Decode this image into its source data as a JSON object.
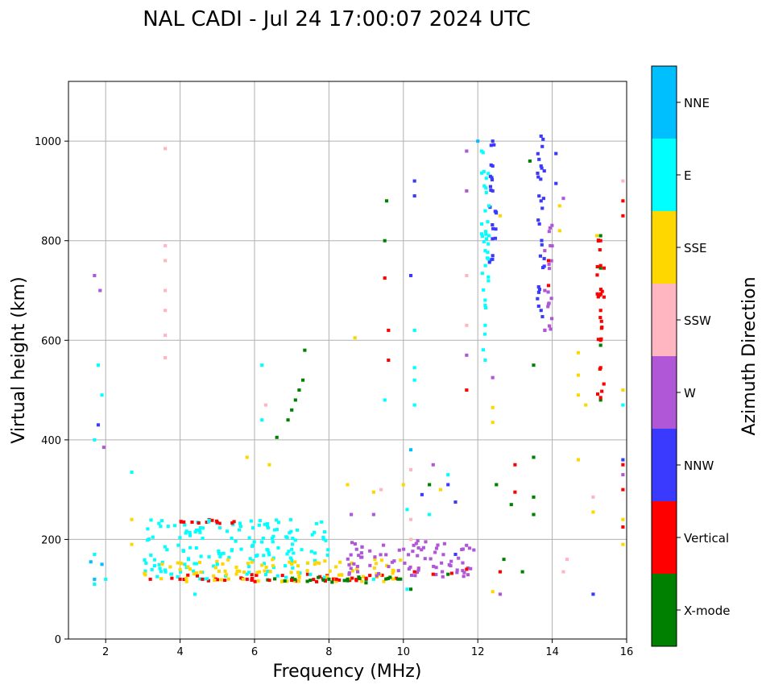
{
  "chart_data": {
    "type": "scatter",
    "title": "NAL CADI - Jul 24 17:00:07 2024 UTC",
    "xlabel": "Frequency (MHz)",
    "ylabel": "Virtual height (km)",
    "xlim": [
      1,
      16
    ],
    "ylim": [
      0,
      1120
    ],
    "xticks": [
      2,
      4,
      6,
      8,
      10,
      12,
      14,
      16
    ],
    "yticks": [
      0,
      200,
      400,
      600,
      800,
      1000
    ],
    "grid": true,
    "colorbar": {
      "label": "Azimuth Direction",
      "position": "right",
      "categories": [
        {
          "name": "X-mode",
          "color": "#008000"
        },
        {
          "name": "Vertical",
          "color": "#ff0000"
        },
        {
          "name": "NNW",
          "color": "#3a3aff"
        },
        {
          "name": "W",
          "color": "#b057d8"
        },
        {
          "name": "SSW",
          "color": "#ffb6c1"
        },
        {
          "name": "SSE",
          "color": "#ffd700"
        },
        {
          "name": "E",
          "color": "#00ffff"
        },
        {
          "name": "NNE",
          "color": "#00bfff"
        }
      ]
    },
    "series": [
      {
        "name": "X-mode",
        "points": [
          [
            6.6,
            405
          ],
          [
            6.9,
            440
          ],
          [
            7.0,
            460
          ],
          [
            7.1,
            480
          ],
          [
            7.2,
            500
          ],
          [
            7.3,
            520
          ],
          [
            7.35,
            580
          ],
          [
            9.5,
            800
          ],
          [
            9.55,
            880
          ],
          [
            7.0,
            120
          ],
          [
            7.5,
            118
          ],
          [
            8.0,
            120
          ],
          [
            8.5,
            120
          ],
          [
            9.0,
            120
          ],
          [
            10.2,
            100
          ],
          [
            10.7,
            310
          ],
          [
            11.2,
            130
          ],
          [
            12.5,
            310
          ],
          [
            12.7,
            160
          ],
          [
            12.9,
            270
          ],
          [
            13.2,
            135
          ],
          [
            13.5,
            285
          ],
          [
            13.5,
            250
          ],
          [
            13.5,
            550
          ],
          [
            13.5,
            365
          ],
          [
            13.4,
            960
          ],
          [
            15.3,
            810
          ],
          [
            15.3,
            745
          ],
          [
            15.3,
            590
          ],
          [
            15.3,
            480
          ]
        ]
      },
      {
        "name": "Vertical",
        "points": [
          [
            4.1,
            235
          ],
          [
            4.5,
            233
          ],
          [
            5.0,
            234
          ],
          [
            5.4,
            233
          ],
          [
            3.2,
            120
          ],
          [
            4.0,
            120
          ],
          [
            4.6,
            120
          ],
          [
            5.2,
            118
          ],
          [
            5.8,
            120
          ],
          [
            6.4,
            118
          ],
          [
            7.0,
            118
          ],
          [
            8.2,
            120
          ],
          [
            9.0,
            122
          ],
          [
            9.5,
            725
          ],
          [
            9.6,
            560
          ],
          [
            9.6,
            620
          ],
          [
            10.3,
            135
          ],
          [
            10.8,
            130
          ],
          [
            11.3,
            132
          ],
          [
            11.7,
            140
          ],
          [
            11.7,
            500
          ],
          [
            12.6,
            135
          ],
          [
            13.0,
            295
          ],
          [
            13.0,
            350
          ],
          [
            13.9,
            710
          ],
          [
            13.9,
            760
          ],
          [
            15.3,
            800
          ],
          [
            15.3,
            750
          ],
          [
            15.3,
            660
          ],
          [
            15.3,
            600
          ],
          [
            15.3,
            545
          ],
          [
            15.3,
            485
          ],
          [
            15.9,
            880
          ],
          [
            15.9,
            850
          ],
          [
            15.9,
            350
          ],
          [
            15.9,
            300
          ],
          [
            15.9,
            225
          ]
        ]
      },
      {
        "name": "NNW",
        "points": [
          [
            1.8,
            430
          ],
          [
            10.2,
            730
          ],
          [
            10.3,
            890
          ],
          [
            10.3,
            920
          ],
          [
            10.5,
            290
          ],
          [
            11.2,
            310
          ],
          [
            11.4,
            275
          ],
          [
            11.4,
            170
          ],
          [
            12.4,
            770
          ],
          [
            12.4,
            900
          ],
          [
            12.4,
            950
          ],
          [
            12.4,
            1000
          ],
          [
            13.7,
            660
          ],
          [
            13.7,
            880
          ],
          [
            13.7,
            950
          ],
          [
            13.7,
            1010
          ],
          [
            14.1,
            975
          ],
          [
            14.1,
            915
          ],
          [
            15.1,
            90
          ],
          [
            15.9,
            360
          ]
        ]
      },
      {
        "name": "W",
        "points": [
          [
            1.7,
            730
          ],
          [
            1.85,
            700
          ],
          [
            1.95,
            385
          ],
          [
            8.6,
            250
          ],
          [
            9.2,
            250
          ],
          [
            10.8,
            350
          ],
          [
            11.7,
            570
          ],
          [
            11.7,
            900
          ],
          [
            11.7,
            980
          ],
          [
            12.4,
            525
          ],
          [
            12.6,
            90
          ],
          [
            13.8,
            620
          ],
          [
            13.8,
            700
          ],
          [
            13.8,
            780
          ],
          [
            14.3,
            885
          ],
          [
            15.9,
            330
          ]
        ]
      },
      {
        "name": "SSW",
        "points": [
          [
            3.6,
            985
          ],
          [
            3.6,
            790
          ],
          [
            3.6,
            760
          ],
          [
            3.6,
            700
          ],
          [
            3.6,
            660
          ],
          [
            3.6,
            610
          ],
          [
            3.6,
            565
          ],
          [
            6.3,
            470
          ],
          [
            9.4,
            300
          ],
          [
            10.2,
            200
          ],
          [
            10.2,
            240
          ],
          [
            10.2,
            340
          ],
          [
            11.7,
            730
          ],
          [
            11.7,
            630
          ],
          [
            14.3,
            135
          ],
          [
            14.4,
            160
          ],
          [
            15.1,
            285
          ],
          [
            15.9,
            920
          ]
        ]
      },
      {
        "name": "SSE",
        "points": [
          [
            2.7,
            190
          ],
          [
            2.7,
            240
          ],
          [
            5.8,
            365
          ],
          [
            6.4,
            350
          ],
          [
            8.7,
            605
          ],
          [
            8.5,
            310
          ],
          [
            9.2,
            295
          ],
          [
            10.0,
            310
          ],
          [
            11.0,
            300
          ],
          [
            12.4,
            465
          ],
          [
            12.4,
            435
          ],
          [
            12.6,
            850
          ],
          [
            12.4,
            95
          ],
          [
            14.2,
            870
          ],
          [
            14.2,
            820
          ],
          [
            14.7,
            575
          ],
          [
            14.7,
            530
          ],
          [
            14.7,
            490
          ],
          [
            14.7,
            360
          ],
          [
            14.9,
            470
          ],
          [
            15.1,
            255
          ],
          [
            15.2,
            810
          ],
          [
            15.9,
            500
          ],
          [
            15.9,
            240
          ],
          [
            15.9,
            190
          ]
        ]
      },
      {
        "name": "E",
        "points": [
          [
            1.7,
            110
          ],
          [
            1.7,
            170
          ],
          [
            1.7,
            400
          ],
          [
            1.8,
            550
          ],
          [
            1.9,
            490
          ],
          [
            2.0,
            120
          ],
          [
            2.7,
            335
          ],
          [
            4.4,
            90
          ],
          [
            5.0,
            150
          ],
          [
            6.2,
            550
          ],
          [
            6.2,
            440
          ],
          [
            7.0,
            180
          ],
          [
            7.8,
            235
          ],
          [
            9.2,
            120
          ],
          [
            9.5,
            480
          ],
          [
            10.1,
            100
          ],
          [
            10.1,
            260
          ],
          [
            10.3,
            520
          ],
          [
            10.3,
            545
          ],
          [
            10.3,
            620
          ],
          [
            10.3,
            470
          ],
          [
            10.7,
            250
          ],
          [
            11.2,
            330
          ],
          [
            12.1,
            980
          ],
          [
            12.2,
            860
          ],
          [
            12.2,
            780
          ],
          [
            12.2,
            670
          ],
          [
            12.2,
            630
          ],
          [
            12.2,
            560
          ],
          [
            12.3,
            870
          ],
          [
            12.3,
            810
          ],
          [
            15.9,
            470
          ]
        ]
      },
      {
        "name": "NNE",
        "points": [
          [
            1.6,
            155
          ],
          [
            1.7,
            120
          ],
          [
            1.9,
            150
          ],
          [
            10.2,
            380
          ],
          [
            12.0,
            1000
          ]
        ]
      }
    ],
    "cluster_bands": [
      {
        "name": "Vertical",
        "x": [
          3.0,
          10.0
        ],
        "y": [
          115,
          130
        ]
      },
      {
        "name": "Vertical",
        "x": [
          4.0,
          5.6
        ],
        "y": [
          229,
          240
        ]
      },
      {
        "name": "E",
        "x": [
          3.0,
          8.0
        ],
        "y": [
          120,
          240
        ]
      },
      {
        "name": "SSE",
        "x": [
          3.0,
          10.0
        ],
        "y": [
          115,
          160
        ]
      },
      {
        "name": "X-mode",
        "x": [
          6.0,
          10.0
        ],
        "y": [
          112,
          125
        ]
      },
      {
        "name": "W",
        "x": [
          8.5,
          12.0
        ],
        "y": [
          125,
          200
        ]
      },
      {
        "name": "NNW",
        "x": [
          12.3,
          12.5
        ],
        "y": [
          750,
          1020
        ]
      },
      {
        "name": "NNW",
        "x": [
          13.6,
          13.8
        ],
        "y": [
          640,
          1020
        ]
      },
      {
        "name": "W",
        "x": [
          13.8,
          14.0
        ],
        "y": [
          610,
          840
        ]
      },
      {
        "name": "Vertical",
        "x": [
          15.2,
          15.4
        ],
        "y": [
          480,
          810
        ]
      },
      {
        "name": "E",
        "x": [
          12.1,
          12.3
        ],
        "y": [
          580,
          1000
        ]
      }
    ]
  }
}
